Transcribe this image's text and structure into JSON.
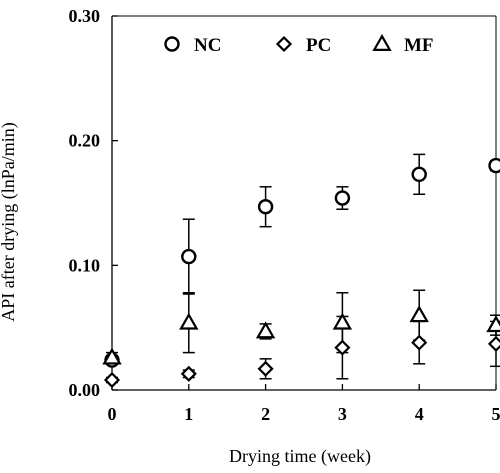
{
  "chart_data": {
    "type": "scatter",
    "title": "",
    "xlabel": "Drying time (week)",
    "ylabel": "API after drying (lnPa/min)",
    "xlim": [
      0,
      5
    ],
    "ylim": [
      0,
      0.3
    ],
    "xticks": [
      0,
      1,
      2,
      3,
      4,
      5
    ],
    "xtick_labels": [
      "0",
      "1",
      "2",
      "3",
      "4",
      "5"
    ],
    "yticks": [
      0,
      0.1,
      0.2,
      0.3
    ],
    "ytick_labels": [
      "0.00",
      "0.10",
      "0.20",
      "0.30"
    ],
    "grid": false,
    "legend_position": "top",
    "series": [
      {
        "name": "NC",
        "marker": "circle",
        "color": "#000000",
        "x": [
          0,
          1,
          2,
          3,
          4,
          5
        ],
        "y": [
          0.024,
          0.107,
          0.147,
          0.154,
          0.173,
          0.18
        ],
        "err": [
          0.003,
          0.03,
          0.016,
          0.009,
          0.016,
          0.004
        ]
      },
      {
        "name": "PC",
        "marker": "diamond",
        "color": "#000000",
        "x": [
          0,
          1,
          2,
          3,
          4,
          5
        ],
        "y": [
          0.008,
          0.013,
          0.017,
          0.034,
          0.038,
          0.037
        ],
        "err": [
          0.002,
          0.003,
          0.008,
          0.025,
          0.017,
          0.018
        ]
      },
      {
        "name": "MF",
        "marker": "triangle",
        "color": "#000000",
        "x": [
          0,
          1,
          2,
          3,
          4,
          5
        ],
        "y": [
          0.026,
          0.054,
          0.047,
          0.054,
          0.06,
          0.052
        ],
        "err": [
          0.004,
          0.024,
          0.006,
          0.024,
          0.02,
          0.008
        ]
      }
    ]
  }
}
